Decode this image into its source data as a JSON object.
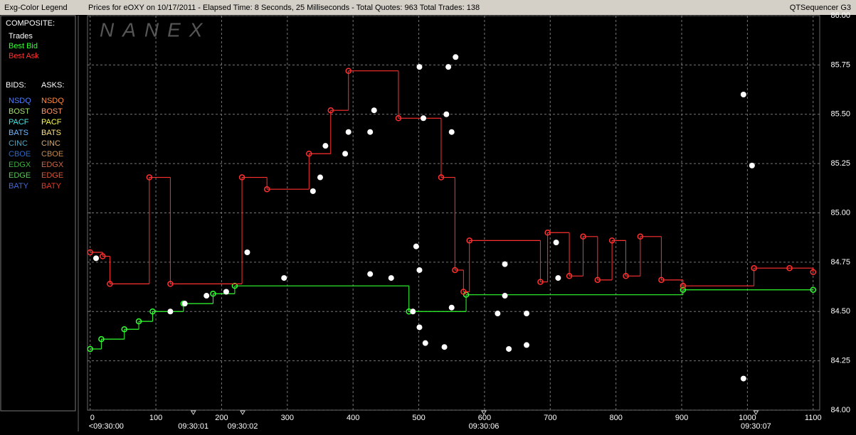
{
  "window": {
    "legend_title": "Exg-Color Legend",
    "app_name": "QTSequencer G3",
    "watermark": "NANEX"
  },
  "legend_panel": {
    "composite_heading": "COMPOSITE:",
    "bids_heading": "BIDS:",
    "asks_heading": "ASKS:",
    "bids": [
      {
        "name": "NSDQ",
        "color": "#4f7fff"
      },
      {
        "name": "BOST",
        "color": "#a8e070"
      },
      {
        "name": "PACF",
        "color": "#40e8e8"
      },
      {
        "name": "BATS",
        "color": "#70b8ff"
      },
      {
        "name": "CINC",
        "color": "#4aa8c8"
      },
      {
        "name": "CBOE",
        "color": "#2a68c8"
      },
      {
        "name": "EDGX",
        "color": "#3cb040"
      },
      {
        "name": "EDGE",
        "color": "#58c858"
      },
      {
        "name": "BATY",
        "color": "#4868d8"
      }
    ],
    "asks": [
      {
        "name": "NSDQ",
        "color": "#ff8c40"
      },
      {
        "name": "BOST",
        "color": "#ff9868"
      },
      {
        "name": "PACF",
        "color": "#ffff40"
      },
      {
        "name": "BATS",
        "color": "#ffe080"
      },
      {
        "name": "CINC",
        "color": "#d8a868"
      },
      {
        "name": "CBOE",
        "color": "#c88848"
      },
      {
        "name": "EDGX",
        "color": "#c86848"
      },
      {
        "name": "EDGE",
        "color": "#d85838"
      },
      {
        "name": "BATY",
        "color": "#e83828"
      }
    ]
  },
  "chart_data": {
    "type": "line",
    "title": "Prices for  eOXY  on  10/17/2011  -  Elapsed Time: 8 Seconds, 25 Milliseconds  -  Total Quotes: 963  Total Trades: 138",
    "xlim": [
      -4,
      1110
    ],
    "xticks": [
      0,
      100,
      200,
      300,
      400,
      500,
      600,
      700,
      800,
      900,
      1000,
      1100
    ],
    "ylim": [
      84,
      86
    ],
    "yticks": [
      {
        "value": 84,
        "label": "84.00"
      },
      {
        "value": 84.25,
        "label": "84.25"
      },
      {
        "value": 84.5,
        "label": "84.50"
      },
      {
        "value": 84.75,
        "label": "84.75"
      },
      {
        "value": 85,
        "label": "85.00"
      },
      {
        "value": 85.25,
        "label": "85.25"
      },
      {
        "value": 85.5,
        "label": "85.50"
      },
      {
        "value": 85.75,
        "label": "85.75"
      },
      {
        "value": 86,
        "label": "86.00"
      }
    ],
    "time_marks": [
      {
        "value": 0,
        "label": "<09:30:00"
      },
      {
        "value": 157,
        "label": "09:30:01"
      },
      {
        "value": 232,
        "label": "09:30:02"
      },
      {
        "value": 599,
        "label": "09:30:06"
      },
      {
        "value": 1013,
        "label": "09:30:07"
      }
    ],
    "grid": true,
    "series": [
      {
        "name": "Trades",
        "color": "#ffffff",
        "style": "scatter",
        "x": [
          9,
          122,
          144,
          177,
          207,
          239,
          295,
          339,
          350,
          358,
          388,
          393,
          426,
          432,
          426,
          458,
          496,
          501,
          501,
          507,
          491,
          501,
          510,
          539,
          542,
          545,
          550,
          550,
          556,
          620,
          631,
          631,
          637,
          664,
          664,
          709,
          712,
          994,
          1007,
          994
        ],
        "values": [
          84.77,
          84.5,
          84.54,
          84.58,
          84.6,
          84.8,
          84.67,
          85.11,
          85.18,
          85.34,
          85.3,
          85.41,
          85.41,
          85.52,
          84.69,
          84.67,
          84.83,
          84.71,
          85.74,
          85.48,
          84.5,
          84.42,
          84.34,
          84.32,
          85.5,
          85.74,
          85.41,
          84.52,
          85.79,
          84.49,
          84.58,
          84.74,
          84.31,
          84.33,
          84.49,
          84.85,
          84.67,
          85.6,
          85.24,
          84.16
        ]
      },
      {
        "name": "Best Bid",
        "color": "#30ff30",
        "style": "step",
        "x": [
          0,
          17,
          52,
          74,
          95,
          142,
          187,
          220,
          485,
          572,
          902,
          1100
        ],
        "values": [
          84.31,
          84.36,
          84.41,
          84.45,
          84.5,
          84.54,
          84.59,
          84.63,
          84.5,
          84.585,
          84.61,
          84.61
        ]
      },
      {
        "name": "Best Ask",
        "color": "#ff3030",
        "style": "step",
        "x": [
          0,
          19,
          30,
          90,
          122,
          231,
          269,
          333,
          366,
          393,
          469,
          534,
          555,
          568,
          577,
          685,
          696,
          729,
          750,
          772,
          794,
          815,
          837,
          869,
          902,
          1010,
          1064,
          1100
        ],
        "values": [
          84.8,
          84.78,
          84.64,
          85.18,
          84.64,
          85.18,
          85.12,
          85.3,
          85.52,
          85.72,
          85.48,
          85.18,
          84.71,
          84.6,
          84.86,
          84.65,
          84.9,
          84.68,
          84.88,
          84.66,
          84.86,
          84.68,
          84.88,
          84.66,
          84.63,
          84.72,
          84.72,
          84.7
        ]
      }
    ]
  }
}
